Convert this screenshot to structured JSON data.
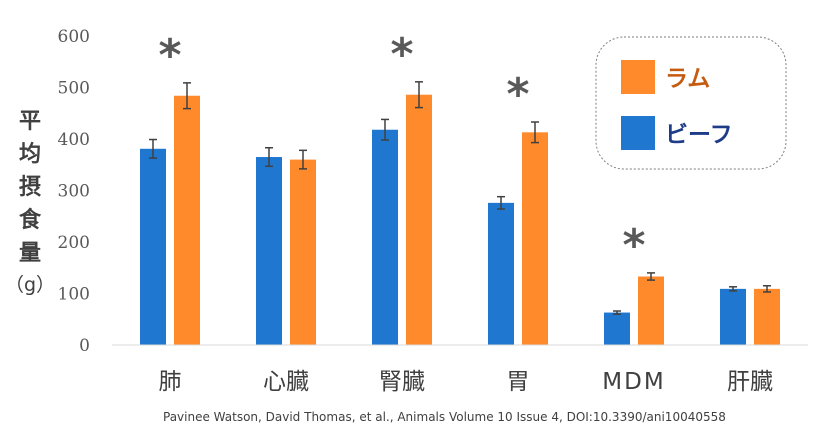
{
  "chart_data": {
    "type": "bar",
    "categories": [
      "肺",
      "心臓",
      "腎臓",
      "胃",
      "MDM",
      "肝臓"
    ],
    "series": [
      {
        "name": "ビーフ",
        "color": "#1f77d0",
        "values": [
          381,
          365,
          418,
          276,
          63,
          109
        ],
        "errors": [
          18,
          18,
          20,
          12,
          3,
          4
        ]
      },
      {
        "name": "ラム",
        "color": "#ff8a2b",
        "values": [
          484,
          360,
          486,
          413,
          133,
          109
        ],
        "errors": [
          25,
          18,
          25,
          20,
          7,
          6
        ]
      }
    ],
    "ylabel": [
      "平",
      "均",
      "摂",
      "食",
      "量"
    ],
    "yunit": "（g）",
    "ylim": [
      0,
      600
    ],
    "yticks": [
      0,
      100,
      200,
      300,
      400,
      500,
      600
    ],
    "significance": {
      "marker": "*",
      "categories": [
        "肺",
        "腎臓",
        "胃",
        "MDM"
      ]
    },
    "legend": {
      "placement": "top-right",
      "order": [
        "ラム",
        "ビーフ"
      ],
      "text_colors": {
        "ラム": "#c55a11",
        "ビーフ": "#1f3c88"
      }
    },
    "grid": false
  },
  "citation": "Pavinee Watson, David Thomas, et al.,  Animals  Volume 10  Issue 4, DOI:10.3390/ani10040558"
}
